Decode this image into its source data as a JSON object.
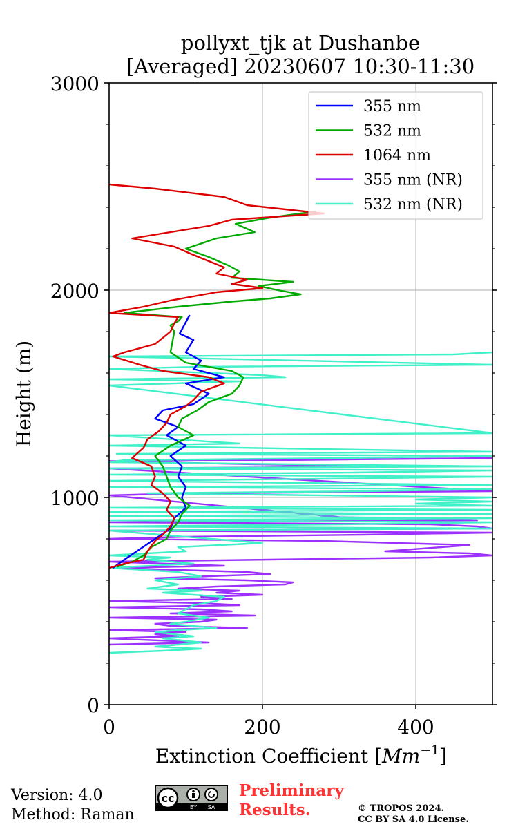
{
  "chart_data": {
    "type": "line",
    "title": "pollyxt_tjk at Dushanbe",
    "subtitle": "[Averaged] 20230607 10:30-11:30",
    "xlabel": "Extinction Coefficient [Mm⁻¹]",
    "xlabel_main": "Extinction Coefficient [",
    "xlabel_unit": "Mm",
    "xlabel_exp": "−1",
    "xlabel_close": "]",
    "ylabel": "Height (m)",
    "xlim": [
      0,
      500
    ],
    "ylim": [
      0,
      3000
    ],
    "xticks": [
      "0",
      "200",
      "400"
    ],
    "xtick_values": [
      0,
      200,
      400
    ],
    "yticks": [
      "0",
      "1000",
      "2000",
      "3000"
    ],
    "ytick_values": [
      0,
      1000,
      2000,
      3000
    ],
    "grid": true,
    "legend_position": "top-right",
    "series": [
      {
        "name": "355 nm",
        "color": "#0000ff",
        "points": [
          [
            105,
            1880
          ],
          [
            92,
            1790
          ],
          [
            110,
            1760
          ],
          [
            100,
            1700
          ],
          [
            120,
            1660
          ],
          [
            110,
            1620
          ],
          [
            150,
            1580
          ],
          [
            100,
            1550
          ],
          [
            130,
            1500
          ],
          [
            110,
            1450
          ],
          [
            70,
            1420
          ],
          [
            60,
            1380
          ],
          [
            90,
            1340
          ],
          [
            75,
            1300
          ],
          [
            100,
            1250
          ],
          [
            80,
            1200
          ],
          [
            95,
            1150
          ],
          [
            90,
            1100
          ],
          [
            100,
            1050
          ],
          [
            95,
            1000
          ],
          [
            100,
            950
          ],
          [
            85,
            900
          ],
          [
            80,
            850
          ],
          [
            60,
            800
          ],
          [
            40,
            750
          ],
          [
            20,
            700
          ],
          [
            5,
            660
          ]
        ]
      },
      {
        "name": "532 nm",
        "color": "#00aa00",
        "points": [
          [
            270,
            2380
          ],
          [
            210,
            2350
          ],
          [
            165,
            2320
          ],
          [
            190,
            2280
          ],
          [
            140,
            2250
          ],
          [
            100,
            2200
          ],
          [
            130,
            2160
          ],
          [
            155,
            2120
          ],
          [
            170,
            2090
          ],
          [
            160,
            2060
          ],
          [
            240,
            2040
          ],
          [
            195,
            2020
          ],
          [
            220,
            2000
          ],
          [
            250,
            1980
          ],
          [
            210,
            1960
          ],
          [
            160,
            1945
          ],
          [
            90,
            1920
          ],
          [
            20,
            1890
          ],
          [
            95,
            1870
          ],
          [
            90,
            1850
          ],
          [
            80,
            1830
          ],
          [
            85,
            1800
          ],
          [
            80,
            1700
          ],
          [
            100,
            1650
          ],
          [
            160,
            1610
          ],
          [
            175,
            1580
          ],
          [
            170,
            1540
          ],
          [
            160,
            1500
          ],
          [
            130,
            1460
          ],
          [
            115,
            1420
          ],
          [
            95,
            1380
          ],
          [
            90,
            1340
          ],
          [
            110,
            1300
          ],
          [
            80,
            1250
          ],
          [
            60,
            1200
          ],
          [
            70,
            1150
          ],
          [
            75,
            1100
          ],
          [
            80,
            1050
          ],
          [
            90,
            1000
          ],
          [
            105,
            960
          ],
          [
            95,
            920
          ],
          [
            90,
            880
          ],
          [
            80,
            840
          ],
          [
            75,
            800
          ],
          [
            55,
            760
          ],
          [
            45,
            720
          ],
          [
            30,
            690
          ],
          [
            10,
            665
          ]
        ]
      },
      {
        "name": "1064 nm",
        "color": "#dd0000",
        "points": [
          [
            0,
            2510
          ],
          [
            60,
            2490
          ],
          [
            150,
            2450
          ],
          [
            180,
            2410
          ],
          [
            280,
            2370
          ],
          [
            160,
            2340
          ],
          [
            130,
            2310
          ],
          [
            80,
            2280
          ],
          [
            30,
            2250
          ],
          [
            85,
            2210
          ],
          [
            110,
            2170
          ],
          [
            130,
            2140
          ],
          [
            150,
            2110
          ],
          [
            140,
            2080
          ],
          [
            180,
            2050
          ],
          [
            160,
            2030
          ],
          [
            200,
            2010
          ],
          [
            140,
            1990
          ],
          [
            110,
            1970
          ],
          [
            80,
            1950
          ],
          [
            45,
            1920
          ],
          [
            0,
            1890
          ],
          [
            90,
            1870
          ],
          [
            85,
            1840
          ],
          [
            80,
            1800
          ],
          [
            60,
            1740
          ],
          [
            20,
            1700
          ],
          [
            5,
            1680
          ],
          [
            40,
            1640
          ],
          [
            70,
            1610
          ],
          [
            130,
            1580
          ],
          [
            150,
            1550
          ],
          [
            120,
            1510
          ],
          [
            110,
            1470
          ],
          [
            100,
            1440
          ],
          [
            80,
            1400
          ],
          [
            75,
            1360
          ],
          [
            65,
            1320
          ],
          [
            50,
            1280
          ],
          [
            45,
            1240
          ],
          [
            30,
            1190
          ],
          [
            55,
            1150
          ],
          [
            60,
            1100
          ],
          [
            55,
            1060
          ],
          [
            70,
            1020
          ],
          [
            80,
            980
          ],
          [
            75,
            940
          ],
          [
            85,
            900
          ],
          [
            80,
            860
          ],
          [
            70,
            820
          ],
          [
            60,
            790
          ],
          [
            50,
            740
          ],
          [
            45,
            700
          ],
          [
            20,
            680
          ],
          [
            0,
            660
          ]
        ]
      },
      {
        "name": "355 nm (NR)",
        "color": "#9b30ff",
        "points": [
          [
            500,
            1190
          ],
          [
            220,
            1180
          ],
          [
            0,
            1175
          ],
          [
            190,
            1160
          ],
          [
            380,
            1150
          ],
          [
            0,
            1140
          ],
          [
            500,
            1030
          ],
          [
            100,
            1020
          ],
          [
            0,
            1010
          ],
          [
            300,
            905
          ],
          [
            480,
            890
          ],
          [
            0,
            880
          ],
          [
            420,
            870
          ],
          [
            480,
            860
          ],
          [
            500,
            850
          ],
          [
            0,
            840
          ],
          [
            500,
            830
          ],
          [
            330,
            820
          ],
          [
            100,
            810
          ],
          [
            0,
            800
          ],
          [
            280,
            790
          ],
          [
            470,
            770
          ],
          [
            360,
            740
          ],
          [
            470,
            730
          ],
          [
            500,
            720
          ],
          [
            420,
            710
          ],
          [
            0,
            690
          ],
          [
            150,
            670
          ],
          [
            0,
            660
          ],
          [
            180,
            640
          ],
          [
            210,
            630
          ],
          [
            130,
            620
          ],
          [
            60,
            610
          ],
          [
            180,
            600
          ],
          [
            240,
            590
          ],
          [
            230,
            580
          ],
          [
            140,
            570
          ],
          [
            90,
            560
          ],
          [
            170,
            550
          ],
          [
            140,
            540
          ],
          [
            200,
            530
          ],
          [
            120,
            520
          ],
          [
            160,
            510
          ],
          [
            0,
            500
          ],
          [
            120,
            490
          ],
          [
            170,
            480
          ],
          [
            0,
            470
          ],
          [
            120,
            460
          ],
          [
            160,
            450
          ],
          [
            80,
            440
          ],
          [
            190,
            430
          ],
          [
            0,
            420
          ],
          [
            140,
            410
          ],
          [
            120,
            400
          ],
          [
            60,
            390
          ],
          [
            80,
            380
          ],
          [
            180,
            370
          ],
          [
            0,
            360
          ],
          [
            100,
            350
          ],
          [
            60,
            340
          ],
          [
            90,
            330
          ],
          [
            0,
            320
          ],
          [
            130,
            300
          ],
          [
            0,
            290
          ]
        ]
      },
      {
        "name": "532 nm (NR)",
        "color": "#40f0c8",
        "points": [
          [
            500,
            1700
          ],
          [
            450,
            1690
          ],
          [
            0,
            1680
          ],
          [
            500,
            1640
          ],
          [
            120,
            1630
          ],
          [
            0,
            1620
          ],
          [
            200,
            1590
          ],
          [
            230,
            1580
          ],
          [
            0,
            1570
          ],
          [
            170,
            1560
          ],
          [
            0,
            1540
          ],
          [
            500,
            1310
          ],
          [
            0,
            1300
          ],
          [
            170,
            1260
          ],
          [
            0,
            1250
          ],
          [
            500,
            1220
          ],
          [
            10,
            1210
          ],
          [
            500,
            1200
          ],
          [
            300,
            1190
          ],
          [
            20,
            1180
          ],
          [
            0,
            1170
          ],
          [
            500,
            1150
          ],
          [
            0,
            1140
          ],
          [
            500,
            1130
          ],
          [
            320,
            1120
          ],
          [
            0,
            1110
          ],
          [
            500,
            1100
          ],
          [
            280,
            1090
          ],
          [
            0,
            1080
          ],
          [
            500,
            1060
          ],
          [
            0,
            1050
          ],
          [
            500,
            1040
          ],
          [
            330,
            1030
          ],
          [
            50,
            1020
          ],
          [
            500,
            1000
          ],
          [
            400,
            990
          ],
          [
            500,
            980
          ],
          [
            400,
            970
          ],
          [
            500,
            960
          ],
          [
            0,
            950
          ],
          [
            500,
            940
          ],
          [
            0,
            930
          ],
          [
            500,
            920
          ],
          [
            0,
            910
          ],
          [
            500,
            900
          ],
          [
            0,
            890
          ],
          [
            500,
            880
          ],
          [
            300,
            870
          ],
          [
            0,
            860
          ],
          [
            500,
            850
          ],
          [
            0,
            840
          ],
          [
            200,
            780
          ],
          [
            90,
            760
          ],
          [
            100,
            740
          ],
          [
            0,
            720
          ],
          [
            80,
            710
          ],
          [
            50,
            700
          ],
          [
            110,
            680
          ],
          [
            0,
            660
          ],
          [
            90,
            640
          ],
          [
            120,
            620
          ],
          [
            60,
            600
          ],
          [
            90,
            580
          ],
          [
            50,
            560
          ],
          [
            120,
            550
          ],
          [
            70,
            540
          ],
          [
            150,
            520
          ],
          [
            140,
            500
          ],
          [
            110,
            480
          ],
          [
            100,
            460
          ],
          [
            90,
            440
          ],
          [
            130,
            420
          ],
          [
            100,
            400
          ],
          [
            80,
            390
          ],
          [
            140,
            370
          ],
          [
            90,
            360
          ],
          [
            60,
            350
          ],
          [
            110,
            330
          ],
          [
            70,
            320
          ],
          [
            120,
            300
          ],
          [
            90,
            290
          ],
          [
            60,
            280
          ],
          [
            120,
            270
          ],
          [
            70,
            260
          ],
          [
            0,
            250
          ]
        ]
      }
    ]
  },
  "footer": {
    "version": "Version: 4.0",
    "method": "Method: Raman",
    "preliminary_line1": "Preliminary",
    "preliminary_line2": "Results.",
    "copyright_line1": "© TROPOS 2024.",
    "copyright_line2": "CC BY SA 4.0 License.",
    "cc_text": "cc",
    "cc_by": "BY",
    "cc_sa": "SA"
  }
}
